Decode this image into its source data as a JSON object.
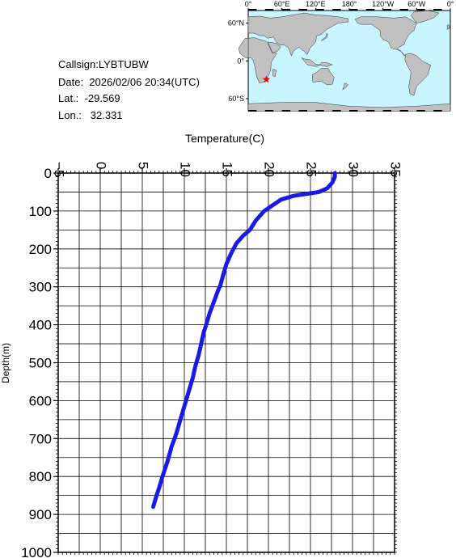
{
  "station": {
    "callsign_label": "Callsign:",
    "callsign": "LYBTUBW",
    "date_label": "Date:",
    "date": "2026/02/06 20:34(UTC)",
    "lat_label": "Lat.:",
    "lat": "-29.569",
    "lon_label": "Lon.:",
    "lon": "32.331"
  },
  "map": {
    "lon_ticks": [
      "0°",
      "60°E",
      "120°E",
      "180°",
      "120°W",
      "60°W",
      "0°"
    ],
    "lat_ticks": [
      "60°N",
      "0°",
      "60°S"
    ],
    "ocean_color": "#c8f5ff",
    "land_color": "#c0c0c0",
    "marker_color": "#ff0000",
    "marker_lat": -29.569,
    "marker_lon": 32.331
  },
  "chart_data": {
    "type": "line",
    "xlabel": "Temperature(C)",
    "ylabel": "Depth(m)",
    "xlim": [
      -5,
      35
    ],
    "ylim": [
      0,
      1000
    ],
    "y_inverted": true,
    "x_ticks": [
      -5,
      0,
      5,
      10,
      15,
      20,
      25,
      30,
      35
    ],
    "y_ticks": [
      0,
      100,
      200,
      300,
      400,
      500,
      600,
      700,
      800,
      900,
      1000
    ],
    "grid": true,
    "line_color": "#1a1ae6",
    "series": [
      {
        "x": [
          27.9,
          27.9,
          27.6,
          27.0,
          26.0,
          24.5,
          23.0,
          21.5,
          20.5,
          19.5,
          18.5,
          17.8,
          17.0,
          16.2,
          15.6,
          15.0,
          14.6,
          14.3,
          14.0,
          13.5,
          13.0,
          12.6,
          12.3,
          12.0,
          11.7,
          11.3,
          11.0,
          10.6,
          10.2,
          9.8,
          9.4,
          9.0,
          8.5,
          8.0,
          7.7,
          7.4,
          7.0,
          6.7,
          6.3
        ],
        "y": [
          0,
          10,
          25,
          40,
          50,
          55,
          60,
          70,
          85,
          100,
          125,
          150,
          165,
          185,
          210,
          240,
          270,
          295,
          310,
          340,
          370,
          400,
          420,
          450,
          480,
          510,
          540,
          570,
          600,
          630,
          660,
          690,
          720,
          760,
          780,
          800,
          830,
          850,
          880
        ]
      }
    ]
  }
}
